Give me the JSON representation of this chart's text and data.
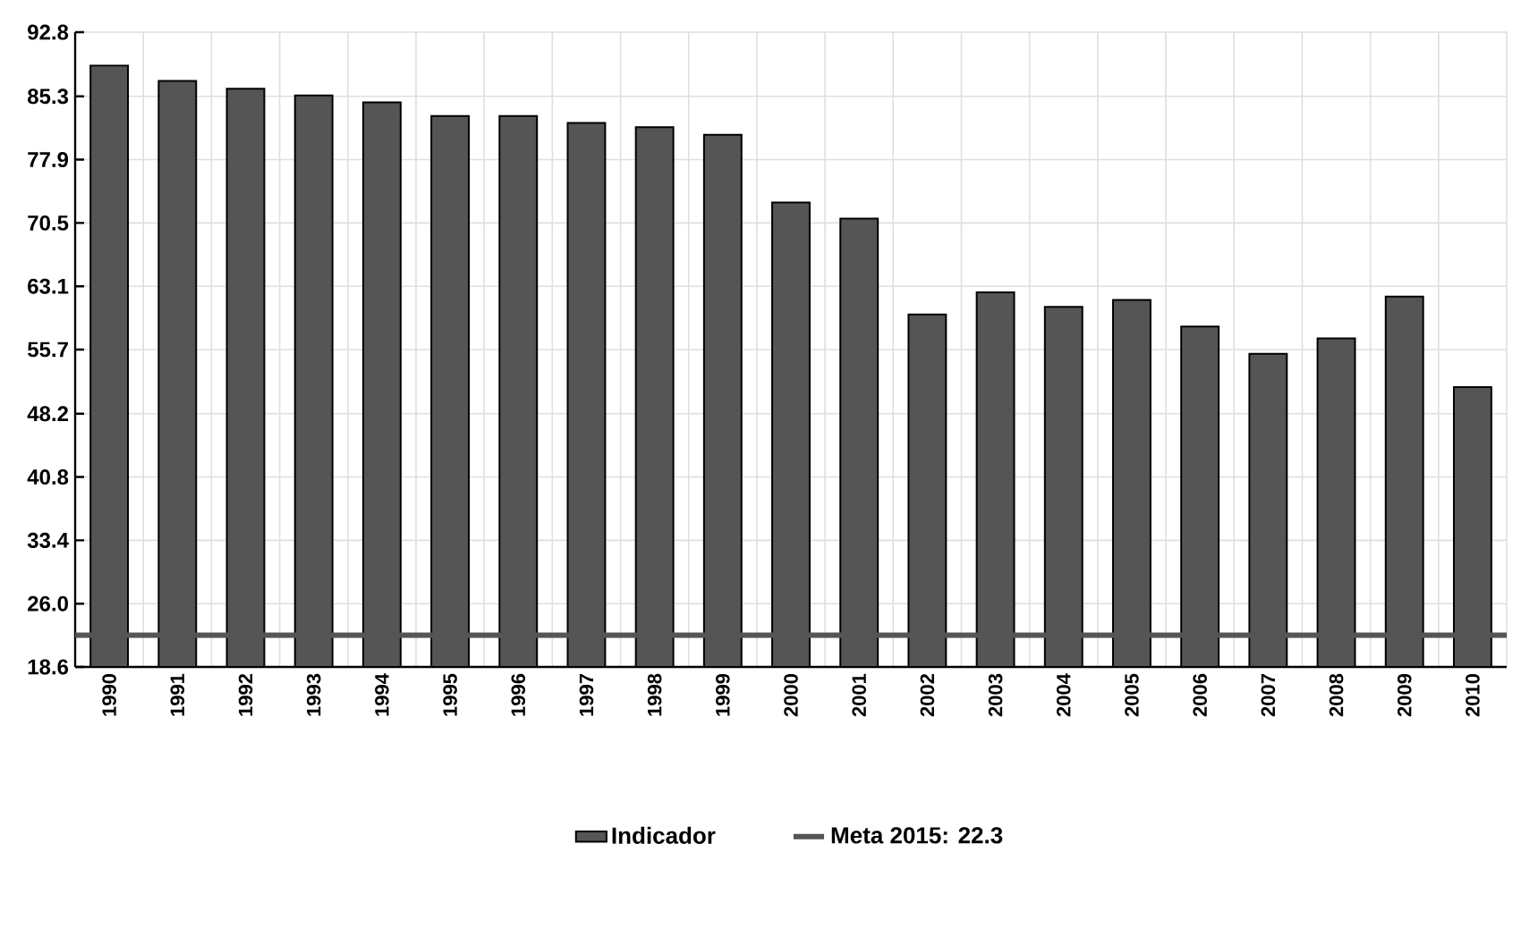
{
  "chart_data": {
    "type": "bar",
    "categories": [
      "1990",
      "1991",
      "1992",
      "1993",
      "1994",
      "1995",
      "1996",
      "1997",
      "1998",
      "1999",
      "2000",
      "2001",
      "2002",
      "2003",
      "2004",
      "2005",
      "2006",
      "2007",
      "2008",
      "2009",
      "2010"
    ],
    "series": [
      {
        "name": "Indicador",
        "color": "#555555",
        "values": [
          88.9,
          87.1,
          86.2,
          85.4,
          84.6,
          83.0,
          83.0,
          82.2,
          81.7,
          80.8,
          72.9,
          71.0,
          59.8,
          62.4,
          60.7,
          61.5,
          58.4,
          55.2,
          57.0,
          61.9,
          51.3
        ]
      }
    ],
    "ylim": [
      18.6,
      92.8
    ],
    "yticks": [
      18.6,
      {
        "value": 26.0,
        "label": "26.0"
      },
      33.4,
      40.8,
      48.2,
      55.7,
      63.1,
      70.5,
      77.9,
      85.3,
      92.8
    ],
    "ref_lines": [
      {
        "axis": "y",
        "value": 22.3,
        "label": "Meta 2015: 22.3",
        "color": "#555555"
      }
    ],
    "grid": true,
    "legend": "bottom"
  }
}
